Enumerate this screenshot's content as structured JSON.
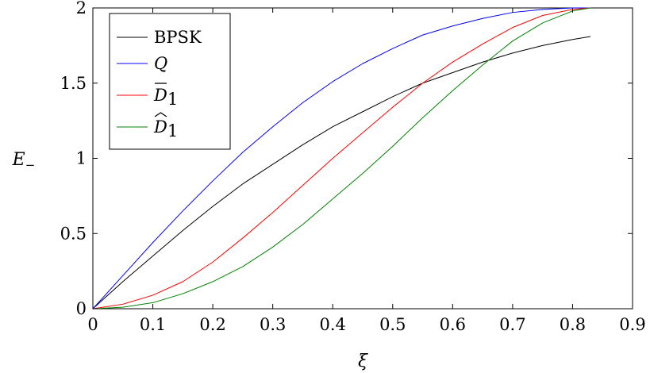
{
  "chart_data": {
    "type": "line",
    "xlabel": "ξ",
    "ylabel": "E",
    "ylabel_sub": "−",
    "xlim": [
      0,
      0.9
    ],
    "ylim": [
      0,
      2
    ],
    "xticks": [
      0,
      0.1,
      0.2,
      0.3,
      0.4,
      0.5,
      0.6,
      0.7,
      0.8,
      0.9
    ],
    "xtick_labels": [
      "0",
      "0.1",
      "0.2",
      "0.3",
      "0.4",
      "0.5",
      "0.6",
      "0.7",
      "0.8",
      "0.9"
    ],
    "yticks": [
      0,
      0.5,
      1,
      1.5,
      2
    ],
    "ytick_labels": [
      "0",
      "0.5",
      "1",
      "1.5",
      "2"
    ],
    "grid": false,
    "legend_position": "top-left",
    "series": [
      {
        "name": "BPSK",
        "color": "#000000",
        "x": [
          0,
          0.05,
          0.1,
          0.15,
          0.2,
          0.25,
          0.3,
          0.35,
          0.4,
          0.45,
          0.5,
          0.55,
          0.6,
          0.65,
          0.7,
          0.75,
          0.8,
          0.83
        ],
        "y": [
          0,
          0.18,
          0.35,
          0.52,
          0.68,
          0.83,
          0.96,
          1.09,
          1.21,
          1.31,
          1.41,
          1.5,
          1.57,
          1.64,
          1.7,
          1.75,
          1.79,
          1.81
        ]
      },
      {
        "name": "𝒬",
        "color": "#0000ff",
        "x": [
          0,
          0.05,
          0.1,
          0.15,
          0.2,
          0.25,
          0.3,
          0.35,
          0.4,
          0.45,
          0.5,
          0.55,
          0.6,
          0.65,
          0.7,
          0.75,
          0.8,
          0.83
        ],
        "y": [
          0,
          0.22,
          0.44,
          0.65,
          0.85,
          1.04,
          1.21,
          1.37,
          1.51,
          1.63,
          1.73,
          1.82,
          1.88,
          1.93,
          1.97,
          1.99,
          2.0,
          2.0
        ]
      },
      {
        "name": "𝒟̄₁",
        "color": "#ff0000",
        "x": [
          0,
          0.05,
          0.1,
          0.15,
          0.2,
          0.25,
          0.3,
          0.35,
          0.4,
          0.45,
          0.5,
          0.55,
          0.6,
          0.65,
          0.7,
          0.75,
          0.8,
          0.83
        ],
        "y": [
          0,
          0.03,
          0.09,
          0.18,
          0.31,
          0.47,
          0.64,
          0.82,
          1.0,
          1.17,
          1.34,
          1.5,
          1.64,
          1.76,
          1.87,
          1.95,
          1.99,
          2.0
        ]
      },
      {
        "name": "𝒟̂₁",
        "color": "#008000",
        "x": [
          0,
          0.05,
          0.1,
          0.15,
          0.2,
          0.25,
          0.3,
          0.35,
          0.4,
          0.45,
          0.5,
          0.55,
          0.6,
          0.65,
          0.7,
          0.75,
          0.8,
          0.83
        ],
        "y": [
          0,
          0.01,
          0.04,
          0.1,
          0.18,
          0.28,
          0.41,
          0.56,
          0.73,
          0.9,
          1.08,
          1.27,
          1.45,
          1.62,
          1.78,
          1.9,
          1.98,
          2.0
        ]
      }
    ],
    "legend_entries": [
      {
        "base": "BPSK",
        "italic": false,
        "mark": "",
        "sub": ""
      },
      {
        "base": "Q",
        "italic": true,
        "mark": "",
        "sub": ""
      },
      {
        "base": "D",
        "italic": true,
        "mark": "bar",
        "sub": "1"
      },
      {
        "base": "D",
        "italic": true,
        "mark": "hat",
        "sub": "1"
      }
    ]
  }
}
